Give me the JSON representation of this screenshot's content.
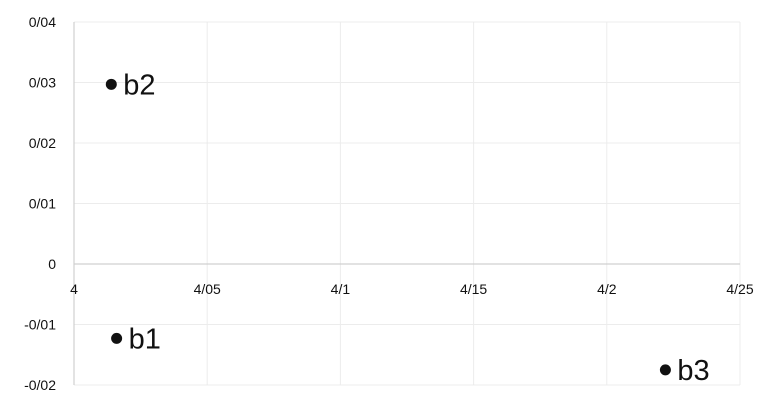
{
  "chart_data": {
    "type": "scatter",
    "title": "",
    "xlabel": "",
    "ylabel": "",
    "x_tick_labels": [
      "4",
      "4/05",
      "4/1",
      "4/15",
      "4/2",
      "4/25"
    ],
    "x_tick_values": [
      4.0,
      4.05,
      4.1,
      4.15,
      4.2,
      4.25
    ],
    "y_tick_labels": [
      "0/04",
      "0/03",
      "0/02",
      "0/01",
      "0",
      "-0/01",
      "-0/02"
    ],
    "y_tick_values": [
      0.04,
      0.03,
      0.02,
      0.01,
      0.0,
      -0.01,
      -0.02
    ],
    "xlim": [
      4.0,
      4.25
    ],
    "ylim": [
      -0.02,
      0.04
    ],
    "grid": true,
    "points": [
      {
        "label": "b2",
        "x": 4.014,
        "y": 0.0297
      },
      {
        "label": "b1",
        "x": 4.016,
        "y": -0.0123
      },
      {
        "label": "b3",
        "x": 4.222,
        "y": -0.0175
      }
    ],
    "colors": {
      "points": "#111111",
      "text": "#111111",
      "grid": "#ececec",
      "axis": "#d0d0d0"
    }
  }
}
